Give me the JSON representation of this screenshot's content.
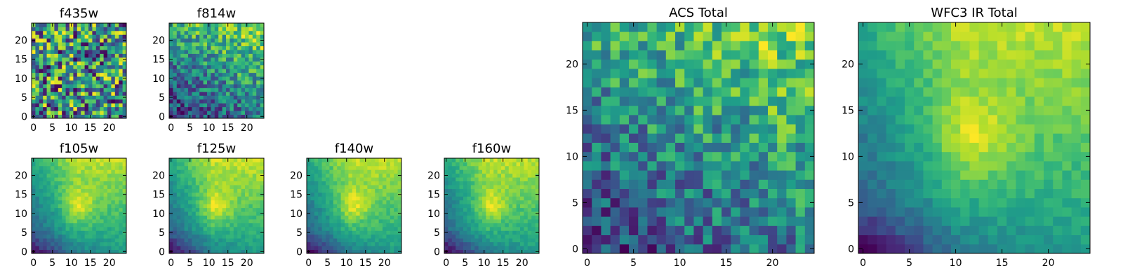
{
  "chart_data": [
    {
      "type": "heatmap",
      "title": "f435w",
      "size": 25,
      "xticks": [
        0,
        5,
        10,
        15,
        20
      ],
      "yticks": [
        0,
        5,
        10,
        15,
        20
      ],
      "xlim": [
        -0.5,
        24.5
      ],
      "ylim": [
        -0.5,
        24.5
      ],
      "colormap": "viridis",
      "pattern": "noisy",
      "seed": 11
    },
    {
      "type": "heatmap",
      "title": "f814w",
      "size": 25,
      "xticks": [
        0,
        5,
        10,
        15,
        20
      ],
      "yticks": [
        0,
        5,
        10,
        15,
        20
      ],
      "xlim": [
        -0.5,
        24.5
      ],
      "ylim": [
        -0.5,
        24.5
      ],
      "colormap": "viridis",
      "pattern": "gradient-noisy",
      "seed": 23
    },
    {
      "type": "heatmap",
      "title": "f105w",
      "size": 25,
      "xticks": [
        0,
        5,
        10,
        15,
        20
      ],
      "yticks": [
        0,
        5,
        10,
        15,
        20
      ],
      "xlim": [
        -0.5,
        24.5
      ],
      "ylim": [
        -0.5,
        24.5
      ],
      "colormap": "viridis",
      "pattern": "smooth",
      "seed": 37
    },
    {
      "type": "heatmap",
      "title": "f125w",
      "size": 25,
      "xticks": [
        0,
        5,
        10,
        15,
        20
      ],
      "yticks": [
        0,
        5,
        10,
        15,
        20
      ],
      "xlim": [
        -0.5,
        24.5
      ],
      "ylim": [
        -0.5,
        24.5
      ],
      "colormap": "viridis",
      "pattern": "smooth",
      "seed": 41
    },
    {
      "type": "heatmap",
      "title": "f140w",
      "size": 25,
      "xticks": [
        0,
        5,
        10,
        15,
        20
      ],
      "yticks": [
        0,
        5,
        10,
        15,
        20
      ],
      "xlim": [
        -0.5,
        24.5
      ],
      "ylim": [
        -0.5,
        24.5
      ],
      "colormap": "viridis",
      "pattern": "smooth",
      "seed": 53
    },
    {
      "type": "heatmap",
      "title": "f160w",
      "size": 25,
      "xticks": [
        0,
        5,
        10,
        15,
        20
      ],
      "yticks": [
        0,
        5,
        10,
        15,
        20
      ],
      "xlim": [
        -0.5,
        24.5
      ],
      "ylim": [
        -0.5,
        24.5
      ],
      "colormap": "viridis",
      "pattern": "smooth",
      "seed": 67
    },
    {
      "type": "heatmap",
      "title": "ACS Total",
      "size": 25,
      "xticks": [
        0,
        5,
        10,
        15,
        20
      ],
      "yticks": [
        0,
        5,
        10,
        15,
        20
      ],
      "xlim": [
        -0.5,
        24.5
      ],
      "ylim": [
        -0.5,
        24.5
      ],
      "colormap": "viridis",
      "pattern": "gradient-noisy",
      "seed": 79
    },
    {
      "type": "heatmap",
      "title": "WFC3 IR Total",
      "size": 25,
      "xticks": [
        0,
        5,
        10,
        15,
        20
      ],
      "yticks": [
        0,
        5,
        10,
        15,
        20
      ],
      "xlim": [
        -0.5,
        24.5
      ],
      "ylim": [
        -0.5,
        24.5
      ],
      "colormap": "viridis",
      "pattern": "smooth",
      "seed": 97
    }
  ],
  "colors": {
    "viridis_stops": [
      "#440154",
      "#482878",
      "#3e4a89",
      "#31688e",
      "#26828e",
      "#1f9e89",
      "#35b779",
      "#6ece58",
      "#b5de2b",
      "#fde725"
    ]
  }
}
